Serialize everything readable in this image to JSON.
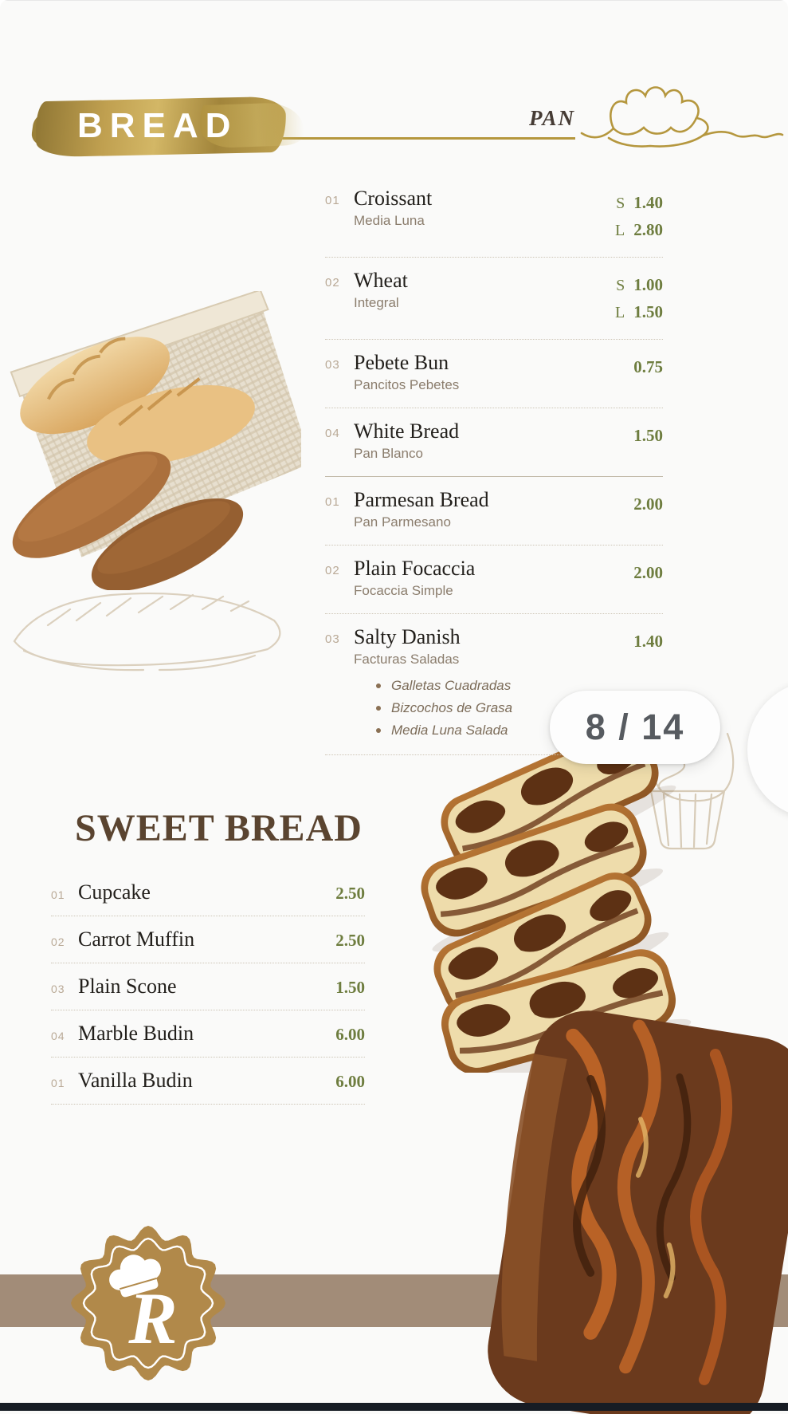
{
  "meta": {
    "page_indicator": "8 / 14"
  },
  "header": {
    "title": "BREAD",
    "subtitle": "PAN",
    "decoration": "croissant-line-art"
  },
  "bread_menu": {
    "items": [
      {
        "num": "01",
        "name": "Croissant",
        "subname": "Media Luna",
        "prices": [
          {
            "label": "S",
            "value": "1.40"
          },
          {
            "label": "L",
            "value": "2.80"
          }
        ],
        "divider": "dotted"
      },
      {
        "num": "02",
        "name": "Wheat",
        "subname": "Integral",
        "prices": [
          {
            "label": "S",
            "value": "1.00"
          },
          {
            "label": "L",
            "value": "1.50"
          }
        ],
        "divider": "dotted"
      },
      {
        "num": "03",
        "name": "Pebete Bun",
        "subname": "Pancitos Pebetes",
        "prices": [
          {
            "value": "0.75"
          }
        ],
        "divider": "dotted"
      },
      {
        "num": "04",
        "name": "White Bread",
        "subname": "Pan Blanco",
        "prices": [
          {
            "value": "1.50"
          }
        ],
        "divider": "solid"
      },
      {
        "num": "01",
        "name": "Parmesan Bread",
        "subname": "Pan Parmesano",
        "prices": [
          {
            "value": "2.00"
          }
        ],
        "divider": "dotted"
      },
      {
        "num": "02",
        "name": "Plain Focaccia",
        "subname": "Focaccia Simple",
        "prices": [
          {
            "value": "2.00"
          }
        ],
        "divider": "dotted"
      },
      {
        "num": "03",
        "name": "Salty Danish",
        "subname": "Facturas Saladas",
        "prices": [
          {
            "value": "1.40"
          }
        ],
        "bullets": [
          "Galletas Cuadradas",
          "Bizcochos de Grasa",
          "Media Luna Salada"
        ],
        "divider": "dotted"
      }
    ]
  },
  "sweet_menu": {
    "title": "SWEET BREAD",
    "items": [
      {
        "num": "01",
        "name": "Cupcake",
        "price": "2.50"
      },
      {
        "num": "02",
        "name": "Carrot Muffin",
        "price": "2.50"
      },
      {
        "num": "03",
        "name": "Plain Scone",
        "price": "1.50"
      },
      {
        "num": "04",
        "name": "Marble Budin",
        "price": "6.00"
      },
      {
        "num": "01",
        "name": "Vanilla Budin",
        "price": "6.00"
      }
    ]
  },
  "footer": {
    "monogram": "R"
  },
  "colors": {
    "gold": "#b5973e",
    "price_green": "#6e7d3f",
    "band_taupe": "#a28c78",
    "badge_gold": "#b1894a",
    "heading_brown": "#5a4430",
    "pill_text_gray": "#575b60"
  }
}
